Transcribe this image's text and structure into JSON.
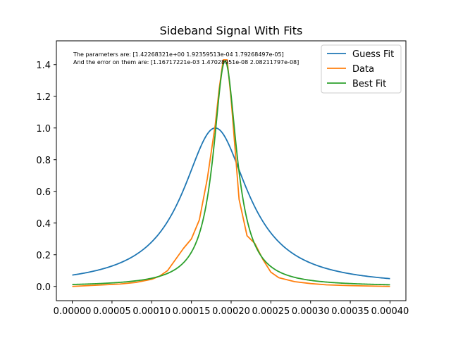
{
  "chart_data": {
    "type": "line",
    "title": "Sideband Signal With Fits",
    "xlabel": "",
    "ylabel": "",
    "xlim": [
      -2e-05,
      0.00042
    ],
    "ylim": [
      -0.09,
      1.55
    ],
    "xticks": [
      0.0,
      5e-05,
      0.0001,
      0.00015,
      0.0002,
      0.00025,
      0.0003,
      0.00035,
      0.0004
    ],
    "xtick_labels": [
      "0.00000",
      "0.00005",
      "0.00010",
      "0.00015",
      "0.00020",
      "0.00025",
      "0.00030",
      "0.00035",
      "0.00040"
    ],
    "yticks": [
      0.0,
      0.2,
      0.4,
      0.6,
      0.8,
      1.0,
      1.2,
      1.4
    ],
    "ytick_labels": [
      "0.0",
      "0.2",
      "0.4",
      "0.6",
      "0.8",
      "1.0",
      "1.2",
      "1.4"
    ],
    "grid": false,
    "legend_position": "top-right",
    "annotations": [
      "The parameters are: [1.42268321e+00 1.92359513e-04 1.79268497e-05]",
      "And the error on them are: [1.16717221e-03 1.47028951e-08 2.08211797e-08]"
    ],
    "series": [
      {
        "name": "Guess Fit",
        "color": "#1f77b4",
        "model": "lorentzian",
        "amplitude": 1.0,
        "center": 0.00018,
        "hwhm": 5e-05,
        "x_range": [
          0.0,
          0.0004
        ]
      },
      {
        "name": "Data",
        "color": "#ff7f0e",
        "x": [
          0.0,
          2e-05,
          4e-05,
          6e-05,
          8e-05,
          0.0001,
          0.00011,
          0.00012,
          0.00013,
          0.00014,
          0.00015,
          0.00016,
          0.00017,
          0.00018,
          0.000185,
          0.00019,
          0.000195,
          0.0002,
          0.00021,
          0.00022,
          0.00023,
          0.00024,
          0.00025,
          0.00026,
          0.00028,
          0.0003,
          0.00032,
          0.00035,
          0.0004
        ],
        "y": [
          0.0,
          0.005,
          0.01,
          0.015,
          0.025,
          0.045,
          0.065,
          0.1,
          0.17,
          0.24,
          0.3,
          0.42,
          0.68,
          1.02,
          1.25,
          1.43,
          1.43,
          1.18,
          0.55,
          0.32,
          0.27,
          0.17,
          0.09,
          0.055,
          0.03,
          0.018,
          0.01,
          0.005,
          0.0
        ]
      },
      {
        "name": "Best Fit",
        "color": "#2ca02c",
        "model": "lorentzian",
        "amplitude": 1.42268321,
        "center": 0.000192359513,
        "hwhm": 1.79268497e-05,
        "x_range": [
          0.0,
          0.0004
        ]
      }
    ]
  }
}
